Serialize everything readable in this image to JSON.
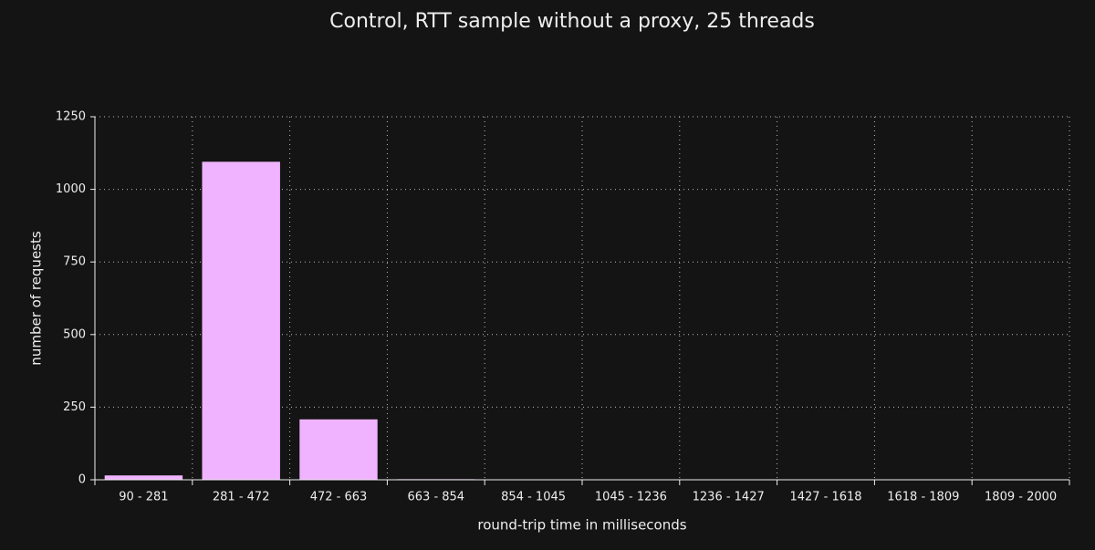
{
  "chart_data": {
    "type": "bar",
    "title": "Control, RTT sample without a proxy, 25 threads",
    "xlabel": "round-trip time in milliseconds",
    "ylabel": "number of requests",
    "categories": [
      "90 - 281",
      "281 - 472",
      "472 - 663",
      "663 - 854",
      "854 - 1045",
      "1045 - 1236",
      "1236 - 1427",
      "1427 - 1618",
      "1618 - 1809",
      "1809 - 2000"
    ],
    "values": [
      15,
      1095,
      208,
      2,
      1,
      0,
      0,
      0,
      0,
      0
    ],
    "color": "#f0b3ff",
    "ylim": [
      0,
      1250
    ],
    "yticks": [
      0,
      250,
      500,
      750,
      1000,
      1250
    ],
    "grid": true
  }
}
